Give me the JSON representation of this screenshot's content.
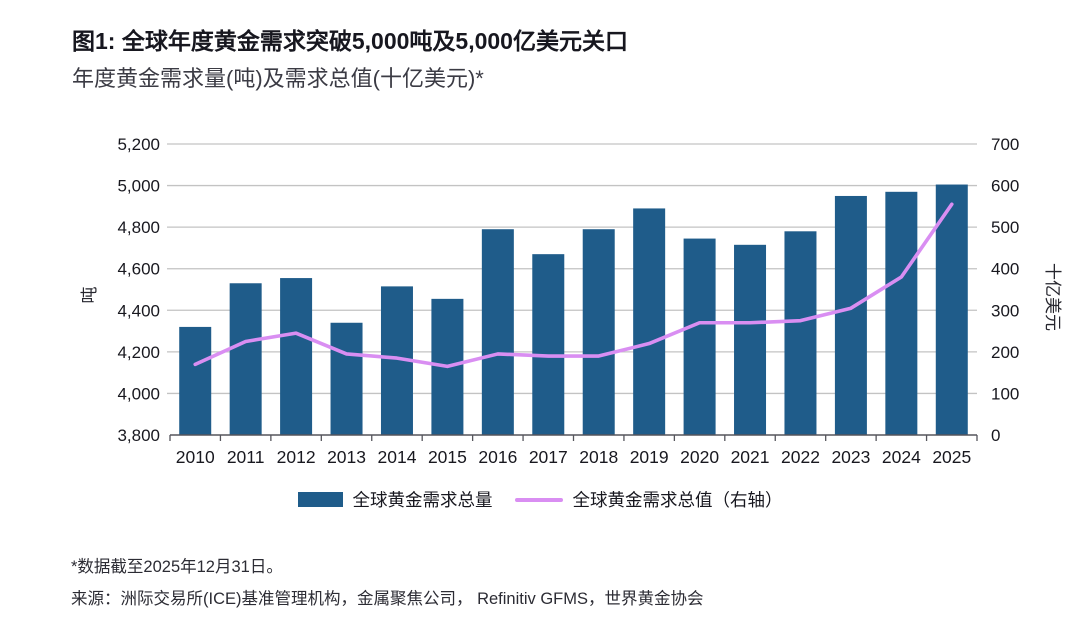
{
  "page": {
    "title": "图1: 全球年度黄金需求突破5,000吨及5,000亿美元关口",
    "subtitle": "年度黄金需求量(吨)及需求总值(十亿美元)*",
    "footnote": "*数据截至2025年12月31日。",
    "source": "来源：洲际交易所(ICE)基准管理机构，金属聚焦公司， Refinitiv GFMS，世界黄金协会"
  },
  "colors": {
    "bar": "#1F5C8A",
    "line": "#D98EF2",
    "grid": "#C3C3C3",
    "axis": "#55555C",
    "text": "#18181F"
  },
  "chart_data": {
    "type": "combo_bar_line",
    "categories": [
      "2010",
      "2011",
      "2012",
      "2013",
      "2014",
      "2015",
      "2016",
      "2017",
      "2018",
      "2019",
      "2020",
      "2021",
      "2022",
      "2023",
      "2024",
      "2025"
    ],
    "series": [
      {
        "name": "全球黄金需求总量",
        "mark": "bar",
        "axis": "left",
        "unit": "吨",
        "values": [
          4320,
          4530,
          4555,
          4340,
          4515,
          4455,
          4790,
          4670,
          4790,
          4890,
          4745,
          4715,
          4780,
          4950,
          4970,
          5005
        ]
      },
      {
        "name": "全球黄金需求总值（右轴）",
        "mark": "line",
        "axis": "right",
        "unit": "十亿美元",
        "values": [
          170,
          225,
          245,
          195,
          185,
          165,
          195,
          190,
          190,
          220,
          270,
          270,
          275,
          305,
          380,
          555
        ]
      }
    ],
    "left_axis": {
      "label": "吨",
      "min": 3800,
      "max": 5200,
      "step": 200,
      "tick_values": [
        3800,
        4000,
        4200,
        4400,
        4600,
        4800,
        5000,
        5200
      ],
      "tick_labels": [
        "3,800",
        "4,000",
        "4,200",
        "4,400",
        "4,600",
        "4,800",
        "5,000",
        "5,200"
      ]
    },
    "right_axis": {
      "label": "十亿美元",
      "min": 0,
      "max": 700,
      "step": 100,
      "tick_values": [
        0,
        100,
        200,
        300,
        400,
        500,
        600,
        700
      ],
      "tick_labels": [
        "0",
        "100",
        "200",
        "300",
        "400",
        "500",
        "600",
        "700"
      ]
    },
    "grid": "horizontal",
    "legend_position": "bottom"
  }
}
